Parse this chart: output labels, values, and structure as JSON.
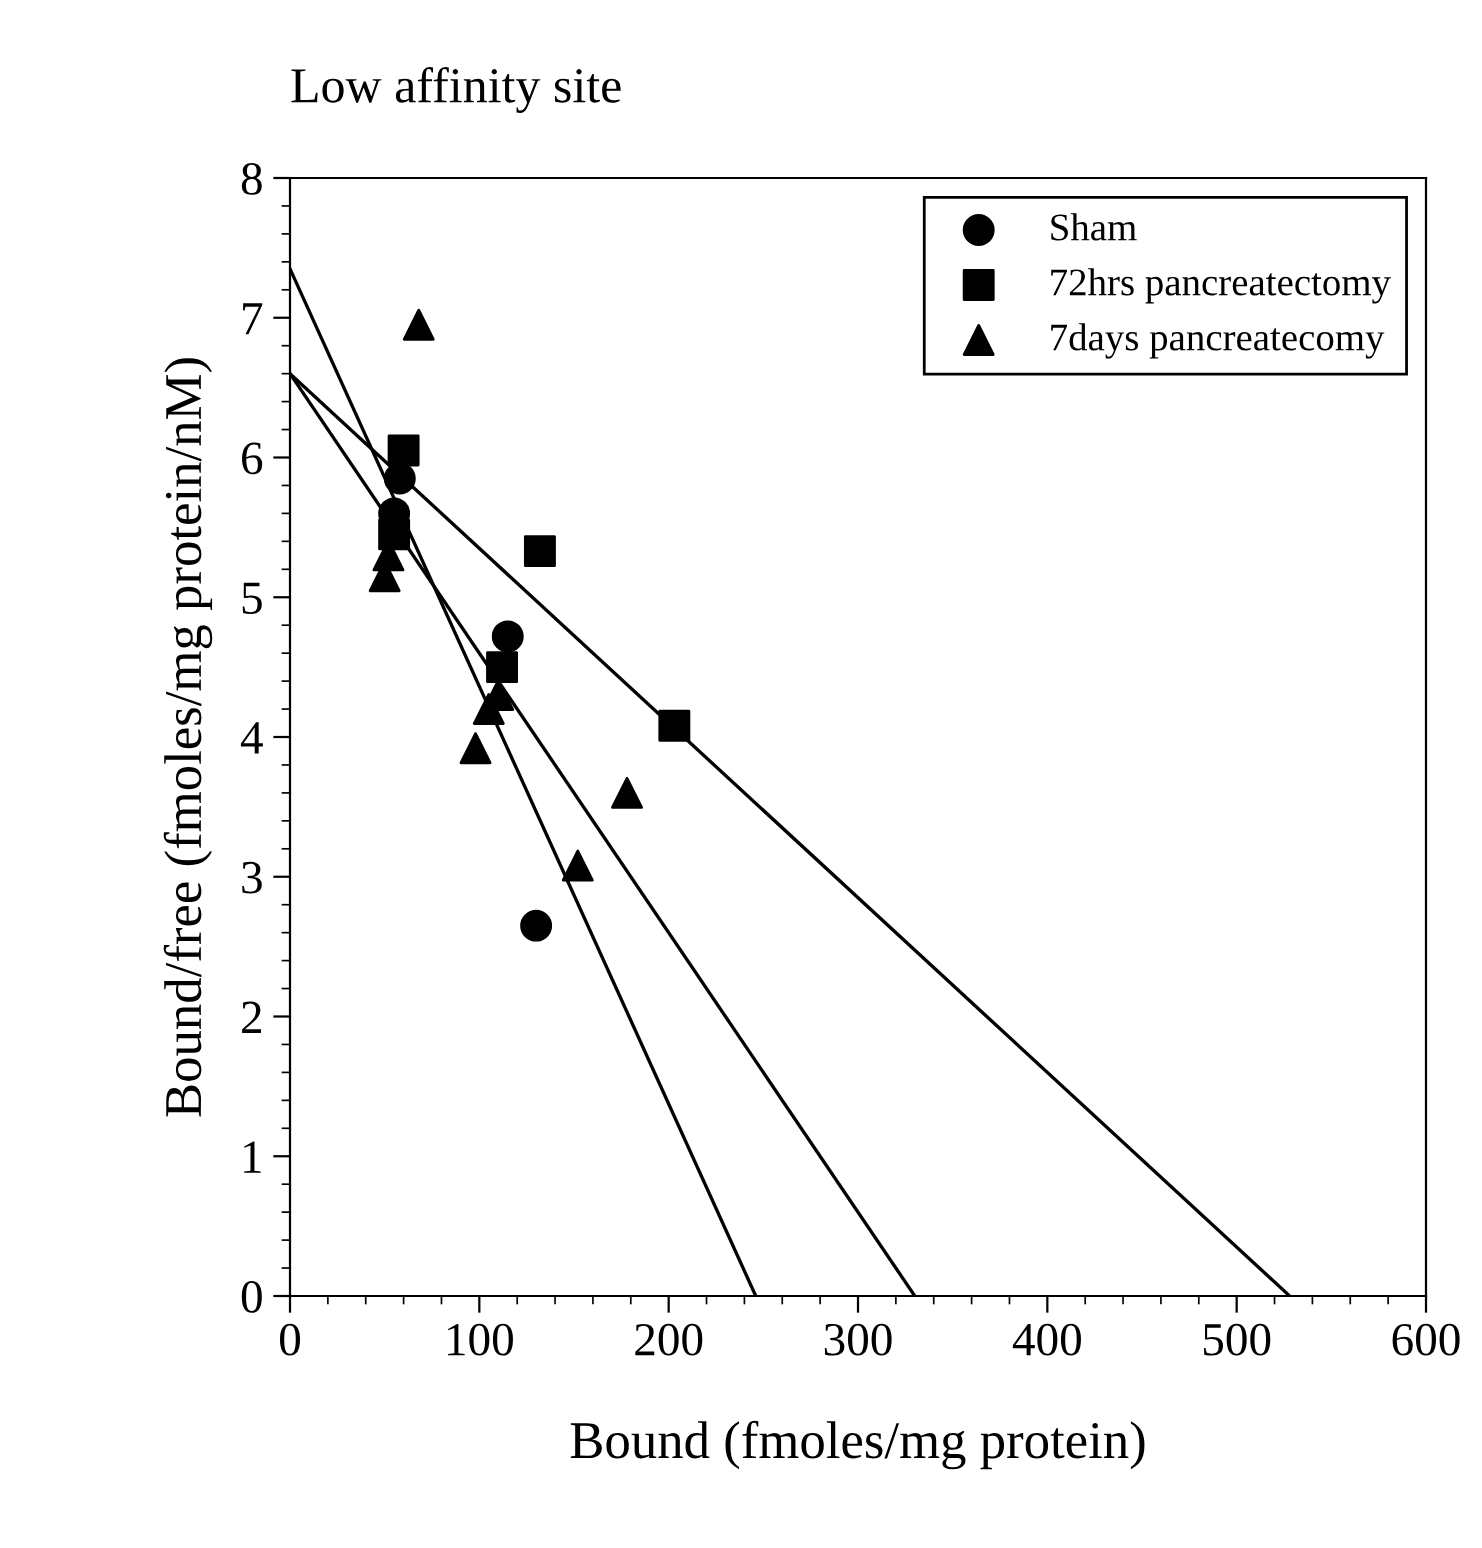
{
  "chart_data": {
    "type": "scatter",
    "title": "Low affinity site",
    "xlabel": "Bound (fmoles/mg protein)",
    "ylabel": "Bound/free (fmoles/mg protein/nM)",
    "xlim": [
      0,
      600
    ],
    "xticks": [
      0,
      100,
      200,
      300,
      400,
      500,
      600
    ],
    "ylim": [
      0,
      8
    ],
    "yticks": [
      0,
      1,
      2,
      3,
      4,
      5,
      6,
      7,
      8
    ],
    "legend": "top right",
    "grid": false,
    "series": [
      {
        "name": "Sham",
        "marker": "circle",
        "color": "#000000",
        "x": [
          55,
          58,
          115,
          130
        ],
        "values": [
          5.6,
          5.85,
          4.72,
          2.65
        ]
      },
      {
        "name": "72hrs pancreatectomy",
        "marker": "square",
        "color": "#000000",
        "x": [
          60,
          55,
          112,
          132,
          203
        ],
        "values": [
          6.05,
          5.45,
          4.5,
          5.33,
          4.08
        ]
      },
      {
        "name": "7days pancreatecomy",
        "marker": "triangle",
        "color": "#000000",
        "x": [
          68,
          50,
          52,
          105,
          98,
          110,
          152,
          178
        ],
        "values": [
          6.95,
          5.15,
          5.3,
          4.2,
          3.92,
          4.3,
          3.08,
          3.6
        ]
      },
      {
        "type": "line",
        "marker": "none",
        "line_style": "solid",
        "color": "#000000",
        "x": [
          0,
          246
        ],
        "values": [
          7.35,
          0
        ]
      },
      {
        "type": "line",
        "marker": "none",
        "line_style": "solid",
        "color": "#000000",
        "x": [
          0,
          330
        ],
        "values": [
          6.6,
          0
        ]
      },
      {
        "type": "line",
        "marker": "none",
        "line_style": "solid",
        "color": "#000000",
        "x": [
          0,
          528
        ],
        "values": [
          6.6,
          0
        ]
      }
    ]
  }
}
